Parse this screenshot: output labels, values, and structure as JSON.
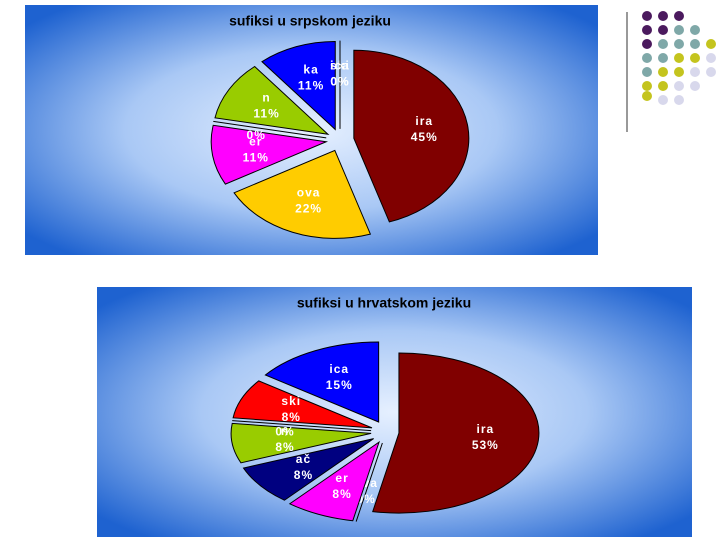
{
  "chart_data": [
    {
      "type": "pie",
      "title": "sufiksi u srpskom jeziku",
      "categories": [
        "ira",
        "ova",
        "er",
        "ač",
        "n",
        "ka",
        "ski",
        "ica"
      ],
      "values": [
        45,
        22,
        11,
        0,
        11,
        11,
        0,
        0
      ],
      "value_labels": [
        "45%",
        "22%",
        "11%",
        "0%",
        "11%",
        "11%",
        "0%",
        "0%"
      ],
      "colors": [
        "#800000",
        "#ffcc00",
        "#ff00ff",
        "#000080",
        "#99cc00",
        "#0000ff",
        "#ff0000",
        "#00ffff"
      ]
    },
    {
      "type": "pie",
      "title": "sufiksi u hrvatskom jeziku",
      "categories": [
        "ira",
        "ova",
        "er",
        "ač",
        "n",
        "ka",
        "ski",
        "ica"
      ],
      "values": [
        53,
        0,
        8,
        8,
        8,
        0,
        8,
        15
      ],
      "value_labels": [
        "53%",
        "0%",
        "8%",
        "8%",
        "8%",
        "0%",
        "8%",
        "15%"
      ],
      "colors": [
        "#800000",
        "#ffcc00",
        "#ff00ff",
        "#000080",
        "#99cc00",
        "#00ffff",
        "#ff0000",
        "#0000ff"
      ]
    }
  ]
}
